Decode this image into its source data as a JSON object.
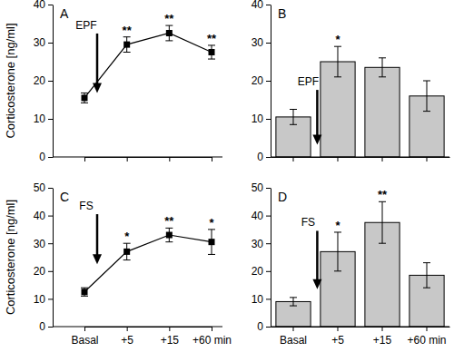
{
  "chart_data": [
    {
      "type": "line",
      "title": "A",
      "annotation": "EPF",
      "y_label": "Corticosterone [ng/ml]",
      "categories": [
        null,
        null,
        null,
        null
      ],
      "values": [
        15.5,
        29.5,
        32.5,
        27.5
      ],
      "errors": [
        1.3,
        2.0,
        2.0,
        1.8
      ],
      "significance": [
        null,
        "**",
        "**",
        "**"
      ],
      "ylim": [
        0,
        40
      ],
      "yticks": [
        0,
        10,
        20,
        30,
        40
      ],
      "color": "#000000",
      "marker": "square"
    },
    {
      "type": "bar",
      "title": "B",
      "annotation": "EPF",
      "categories": [
        null,
        null,
        null,
        null
      ],
      "values": [
        10.5,
        25,
        23.5,
        16
      ],
      "errors": [
        2,
        4,
        2.5,
        4
      ],
      "significance": [
        null,
        "*",
        null,
        null
      ],
      "ylim": [
        0,
        40
      ],
      "yticks": [
        0,
        10,
        20,
        30,
        40
      ],
      "color": "#c8c8c8"
    },
    {
      "type": "line",
      "title": "C",
      "annotation": "FS",
      "y_label": "Corticosterone [ng/ml]",
      "categories": [
        "Basal",
        "+5",
        "+15",
        "+60 min"
      ],
      "values": [
        12.5,
        27,
        33,
        30.5
      ],
      "errors": [
        1.5,
        3,
        2.5,
        4.5
      ],
      "significance": [
        null,
        "*",
        "**",
        "*"
      ],
      "ylim": [
        0,
        50
      ],
      "yticks": [
        0,
        10,
        20,
        30,
        40,
        50
      ],
      "color": "#000000",
      "marker": "square"
    },
    {
      "type": "bar",
      "title": "D",
      "annotation": "FS",
      "categories": [
        "Basal",
        "+5",
        "+15",
        "+60 min"
      ],
      "values": [
        9,
        27,
        37.5,
        18.5
      ],
      "errors": [
        1.5,
        7,
        7.5,
        4.5
      ],
      "significance": [
        null,
        "*",
        "**",
        null
      ],
      "ylim": [
        0,
        50
      ],
      "yticks": [
        0,
        10,
        20,
        30,
        40,
        50
      ],
      "color": "#c8c8c8"
    }
  ]
}
